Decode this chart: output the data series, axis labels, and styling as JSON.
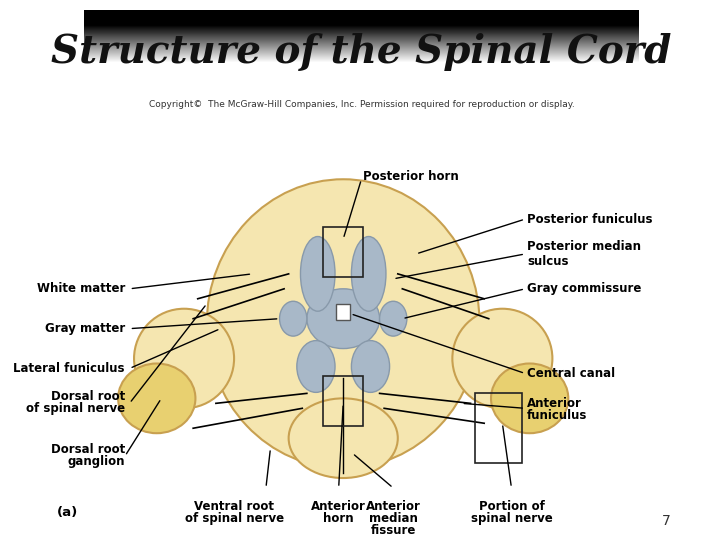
{
  "title": "Structure of the Spinal Cord",
  "title_bg_grad_top": "#aaaaaa",
  "title_bg_grad_bottom": "#555555",
  "title_color": "#111111",
  "title_fontsize": 28,
  "copyright_text": "Copyright©  The McGraw-Hill Companies, Inc. Permission required for reproduction or display.",
  "copyright_fontsize": 6.5,
  "page_number": "7",
  "background_color": "#ffffff",
  "body_color": "#f5e6b0",
  "gray_matter_color": "#a8b8c8",
  "label_fontsize": 8.5,
  "annotation_color": "#000000"
}
